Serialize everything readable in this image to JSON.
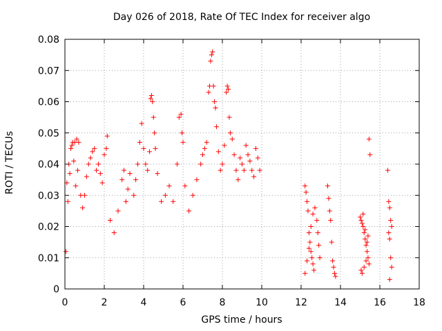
{
  "chart_data": {
    "type": "scatter",
    "title": "Day 026 of 2018, Rate Of TEC Index for receiver algo",
    "xlabel": "GPS time / hours",
    "ylabel": "ROTI / TECUs",
    "xlim": [
      0,
      18
    ],
    "ylim": [
      0,
      0.08
    ],
    "xticks": [
      "0",
      "2",
      "4",
      "6",
      "8",
      "10",
      "12",
      "14",
      "16",
      "18"
    ],
    "yticks": [
      "0",
      "0.01",
      "0.02",
      "0.03",
      "0.04",
      "0.05",
      "0.06",
      "0.07",
      "0.08"
    ],
    "grid": true,
    "marker": "+",
    "color": "#ff0000",
    "series": [
      {
        "points": [
          [
            0.05,
            0.012
          ],
          [
            0.1,
            0.034
          ],
          [
            0.15,
            0.028
          ],
          [
            0.2,
            0.04
          ],
          [
            0.3,
            0.045
          ],
          [
            0.35,
            0.046
          ],
          [
            0.4,
            0.047
          ],
          [
            0.5,
            0.047
          ],
          [
            0.6,
            0.048
          ],
          [
            0.7,
            0.047
          ],
          [
            0.25,
            0.037
          ],
          [
            0.45,
            0.041
          ],
          [
            0.55,
            0.033
          ],
          [
            0.65,
            0.038
          ],
          [
            0.8,
            0.03
          ],
          [
            0.9,
            0.026
          ],
          [
            1.0,
            0.03
          ],
          [
            1.1,
            0.036
          ],
          [
            1.2,
            0.04
          ],
          [
            1.3,
            0.042
          ],
          [
            1.4,
            0.044
          ],
          [
            1.5,
            0.045
          ],
          [
            1.6,
            0.038
          ],
          [
            1.7,
            0.04
          ],
          [
            1.8,
            0.037
          ],
          [
            1.9,
            0.034
          ],
          [
            2.0,
            0.043
          ],
          [
            2.1,
            0.045
          ],
          [
            2.15,
            0.049
          ],
          [
            2.3,
            0.022
          ],
          [
            2.5,
            0.018
          ],
          [
            2.7,
            0.025
          ],
          [
            2.9,
            0.035
          ],
          [
            3.0,
            0.038
          ],
          [
            3.1,
            0.028
          ],
          [
            3.2,
            0.032
          ],
          [
            3.3,
            0.037
          ],
          [
            3.5,
            0.03
          ],
          [
            3.6,
            0.035
          ],
          [
            3.7,
            0.04
          ],
          [
            3.8,
            0.047
          ],
          [
            3.9,
            0.053
          ],
          [
            4.0,
            0.045
          ],
          [
            4.1,
            0.04
          ],
          [
            4.2,
            0.038
          ],
          [
            4.3,
            0.044
          ],
          [
            4.35,
            0.061
          ],
          [
            4.4,
            0.062
          ],
          [
            4.45,
            0.06
          ],
          [
            4.5,
            0.055
          ],
          [
            4.55,
            0.05
          ],
          [
            4.6,
            0.045
          ],
          [
            4.7,
            0.037
          ],
          [
            4.9,
            0.028
          ],
          [
            5.1,
            0.03
          ],
          [
            5.3,
            0.033
          ],
          [
            5.5,
            0.028
          ],
          [
            5.7,
            0.04
          ],
          [
            5.8,
            0.055
          ],
          [
            5.9,
            0.056
          ],
          [
            5.95,
            0.05
          ],
          [
            6.0,
            0.047
          ],
          [
            6.1,
            0.033
          ],
          [
            6.3,
            0.025
          ],
          [
            6.5,
            0.03
          ],
          [
            6.7,
            0.035
          ],
          [
            6.9,
            0.04
          ],
          [
            7.0,
            0.043
          ],
          [
            7.1,
            0.045
          ],
          [
            7.2,
            0.047
          ],
          [
            7.3,
            0.063
          ],
          [
            7.35,
            0.065
          ],
          [
            7.4,
            0.073
          ],
          [
            7.45,
            0.075
          ],
          [
            7.5,
            0.076
          ],
          [
            7.55,
            0.065
          ],
          [
            7.6,
            0.06
          ],
          [
            7.65,
            0.058
          ],
          [
            7.7,
            0.052
          ],
          [
            7.8,
            0.044
          ],
          [
            7.9,
            0.038
          ],
          [
            8.0,
            0.04
          ],
          [
            8.1,
            0.046
          ],
          [
            8.2,
            0.063
          ],
          [
            8.25,
            0.065
          ],
          [
            8.3,
            0.064
          ],
          [
            8.35,
            0.055
          ],
          [
            8.4,
            0.05
          ],
          [
            8.5,
            0.048
          ],
          [
            8.6,
            0.043
          ],
          [
            8.7,
            0.038
          ],
          [
            8.8,
            0.035
          ],
          [
            8.9,
            0.042
          ],
          [
            9.0,
            0.04
          ],
          [
            9.1,
            0.038
          ],
          [
            9.2,
            0.046
          ],
          [
            9.3,
            0.043
          ],
          [
            9.4,
            0.041
          ],
          [
            9.5,
            0.038
          ],
          [
            9.6,
            0.036
          ],
          [
            9.7,
            0.045
          ],
          [
            9.8,
            0.042
          ],
          [
            9.9,
            0.038
          ],
          [
            12.2,
            0.033
          ],
          [
            12.25,
            0.031
          ],
          [
            12.3,
            0.028
          ],
          [
            12.35,
            0.025
          ],
          [
            12.4,
            0.018
          ],
          [
            12.45,
            0.015
          ],
          [
            12.5,
            0.012
          ],
          [
            12.55,
            0.01
          ],
          [
            12.6,
            0.008
          ],
          [
            12.65,
            0.006
          ],
          [
            12.2,
            0.005
          ],
          [
            12.3,
            0.009
          ],
          [
            12.4,
            0.013
          ],
          [
            12.5,
            0.02
          ],
          [
            12.6,
            0.024
          ],
          [
            12.7,
            0.026
          ],
          [
            12.8,
            0.022
          ],
          [
            12.85,
            0.018
          ],
          [
            12.9,
            0.014
          ],
          [
            12.95,
            0.01
          ],
          [
            13.35,
            0.033
          ],
          [
            13.4,
            0.029
          ],
          [
            13.45,
            0.025
          ],
          [
            13.5,
            0.022
          ],
          [
            13.55,
            0.015
          ],
          [
            13.6,
            0.009
          ],
          [
            13.65,
            0.007
          ],
          [
            13.7,
            0.005
          ],
          [
            13.75,
            0.004
          ],
          [
            15.0,
            0.023
          ],
          [
            15.05,
            0.022
          ],
          [
            15.1,
            0.021
          ],
          [
            15.15,
            0.02
          ],
          [
            15.2,
            0.018
          ],
          [
            15.25,
            0.016
          ],
          [
            15.3,
            0.014
          ],
          [
            15.35,
            0.012
          ],
          [
            15.4,
            0.01
          ],
          [
            15.45,
            0.008
          ],
          [
            15.05,
            0.006
          ],
          [
            15.1,
            0.005
          ],
          [
            15.2,
            0.007
          ],
          [
            15.3,
            0.009
          ],
          [
            15.4,
            0.017
          ],
          [
            15.45,
            0.048
          ],
          [
            15.5,
            0.043
          ],
          [
            15.15,
            0.024
          ],
          [
            15.25,
            0.019
          ],
          [
            15.35,
            0.015
          ],
          [
            16.4,
            0.038
          ],
          [
            16.45,
            0.028
          ],
          [
            16.5,
            0.026
          ],
          [
            16.55,
            0.022
          ],
          [
            16.6,
            0.02
          ],
          [
            16.45,
            0.018
          ],
          [
            16.5,
            0.016
          ],
          [
            16.55,
            0.01
          ],
          [
            16.6,
            0.007
          ],
          [
            16.5,
            0.003
          ]
        ]
      }
    ]
  }
}
